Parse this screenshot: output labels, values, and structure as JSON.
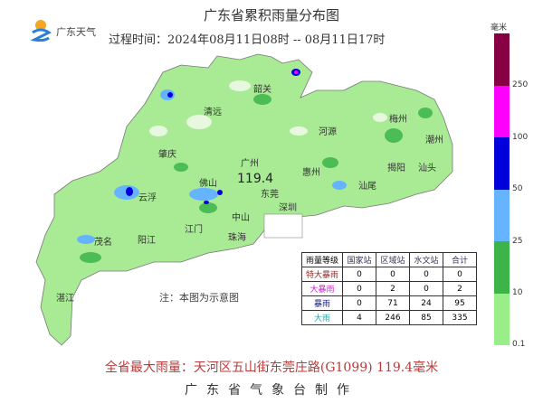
{
  "header": {
    "title": "广东省累积雨量分布图",
    "period": "过程时间：2024年08月11日08时 -- 08月11日17时",
    "logo_text": "广东天气"
  },
  "map": {
    "cities": [
      "韶关",
      "清远",
      "河源",
      "梅州",
      "潮州",
      "肇庆",
      "广州",
      "惠州",
      "揭阳",
      "汕头",
      "佛山",
      "汕尾",
      "云浮",
      "东莞",
      "深圳",
      "中山",
      "江门",
      "珠海",
      "阳江",
      "茂名",
      "湛江"
    ],
    "max_marker_value": "119.4",
    "note": "注：本图为示意图",
    "colors": {
      "land": "#d8f5c8",
      "light_rain": "#99ee88",
      "moderate": "#44bb44",
      "heavy": "#66b3ff",
      "rainstorm": "#0000dd",
      "severe": "#ff00ff",
      "extreme": "#880044"
    }
  },
  "legend": {
    "unit": "毫米",
    "segments": [
      {
        "color": "#880044"
      },
      {
        "color": "#ff00ff"
      },
      {
        "color": "#0000dd"
      },
      {
        "color": "#66b3ff"
      },
      {
        "color": "#3cb44a"
      },
      {
        "color": "#99ee88"
      }
    ],
    "ticks": [
      "250",
      "100",
      "50",
      "25",
      "10",
      "0.1"
    ]
  },
  "table": {
    "headers": [
      "雨量等级",
      "国家站",
      "区域站",
      "水文站",
      "合计"
    ],
    "rows": [
      {
        "level": "特大暴雨",
        "color": "#8b2a2a",
        "values": [
          "0",
          "0",
          "0",
          "0"
        ]
      },
      {
        "level": "大暴雨",
        "color": "#cc22cc",
        "values": [
          "0",
          "2",
          "0",
          "2"
        ]
      },
      {
        "level": "暴雨",
        "color": "#1a1a80",
        "values": [
          "0",
          "71",
          "24",
          "95"
        ]
      },
      {
        "level": "大雨",
        "color": "#22aaaa",
        "values": [
          "4",
          "246",
          "85",
          "335"
        ]
      }
    ]
  },
  "footer": {
    "max_rain": "全省最大雨量：天河区五山街东莞庄路(G1099) 119.4毫米",
    "credit": "广东省气象台制作"
  }
}
